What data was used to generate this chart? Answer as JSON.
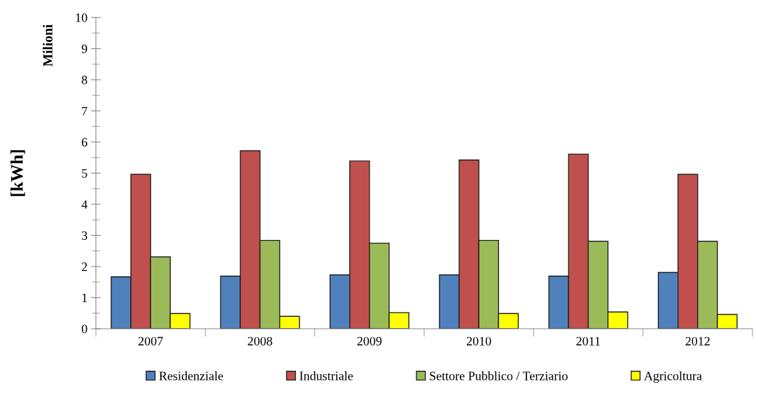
{
  "chart_data": {
    "type": "bar",
    "ylabel": "[kWh]",
    "annotations": [
      "Milioni"
    ],
    "categories": [
      "2007",
      "2008",
      "2009",
      "2010",
      "2011",
      "2012"
    ],
    "series": [
      {
        "name": "Residenziale",
        "color": "#4f81bd",
        "values": [
          1.67,
          1.69,
          1.73,
          1.73,
          1.69,
          1.81
        ]
      },
      {
        "name": "Industriale",
        "color": "#c0504d",
        "values": [
          4.96,
          5.72,
          5.39,
          5.42,
          5.61,
          4.96
        ]
      },
      {
        "name": "Settore Pubblico / Terziario",
        "color": "#9bbb59",
        "values": [
          2.31,
          2.84,
          2.75,
          2.84,
          2.81,
          2.81
        ]
      },
      {
        "name": "Agricoltura",
        "color": "#ffff00",
        "values": [
          0.49,
          0.4,
          0.52,
          0.49,
          0.54,
          0.46
        ]
      }
    ],
    "ylim": [
      0,
      10
    ],
    "yticks": [
      0,
      1,
      2,
      3,
      4,
      5,
      6,
      7,
      8,
      9,
      10
    ],
    "grid": false,
    "legend": "bottom"
  }
}
